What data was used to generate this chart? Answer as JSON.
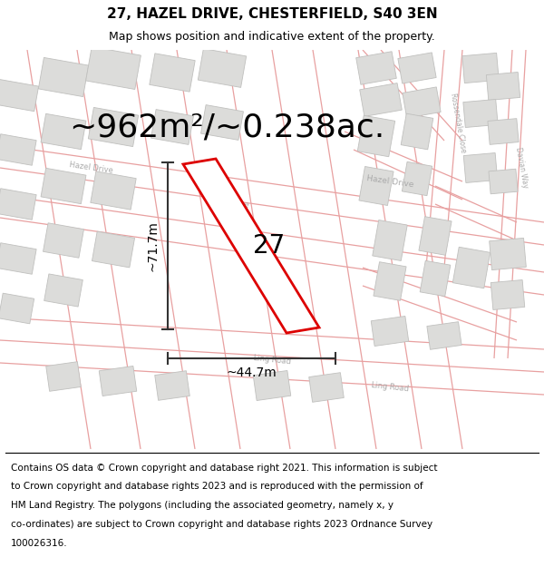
{
  "title": "27, HAZEL DRIVE, CHESTERFIELD, S40 3EN",
  "subtitle": "Map shows position and indicative extent of the property.",
  "area_text": "~962m²/~0.238ac.",
  "label_27": "27",
  "dim_height": "~71.7m",
  "dim_width": "~44.7m",
  "footer_lines": [
    "Contains OS data © Crown copyright and database right 2021. This information is subject",
    "to Crown copyright and database rights 2023 and is reproduced with the permission of",
    "HM Land Registry. The polygons (including the associated geometry, namely x, y",
    "co-ordinates) are subject to Crown copyright and database rights 2023 Ordnance Survey",
    "100026316."
  ],
  "map_bg": "#f0eeec",
  "road_pink": "#e8a0a0",
  "road_gray": "#c8c8c8",
  "building_fill": "#dcdcda",
  "building_edge": "#c0c0be",
  "plot_color": "#dd0000",
  "plot_fill": "#ffffff",
  "dim_line_color": "#333333",
  "title_fontsize": 11,
  "subtitle_fontsize": 9,
  "area_fontsize": 26,
  "label_fontsize": 20,
  "dim_fontsize": 10,
  "footer_fontsize": 7.5,
  "road_label_fontsize": 6,
  "road_label_color": "#aaaaaa"
}
